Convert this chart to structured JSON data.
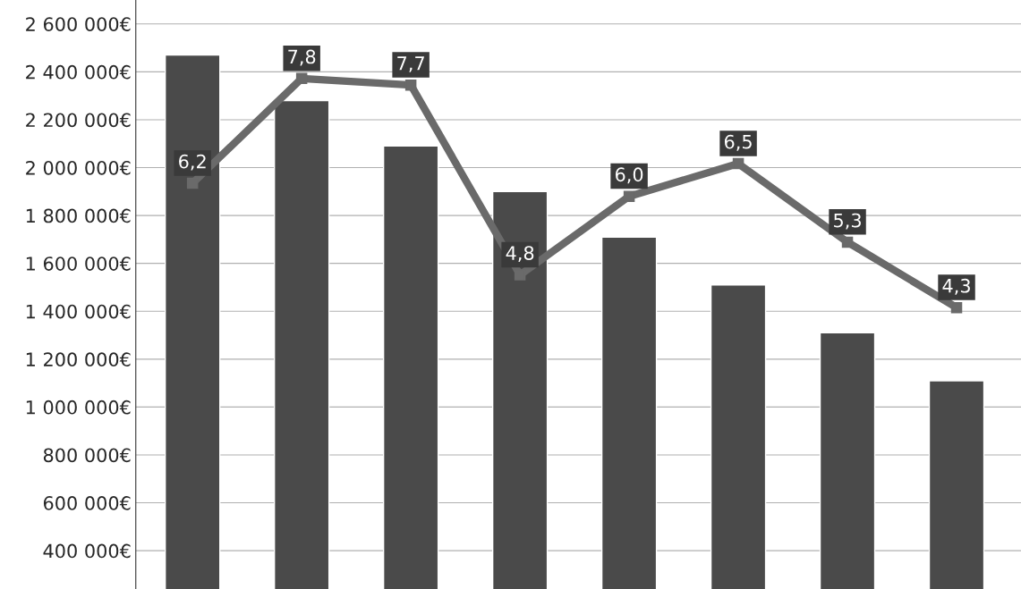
{
  "chart_data": {
    "type": "bar",
    "categories": [
      null,
      null,
      null,
      null,
      null,
      null,
      null,
      null
    ],
    "series": [
      {
        "color": "#4a4a4a",
        "values": [
          2470000,
          2280000,
          2090000,
          1900000,
          1710000,
          1510000,
          1310000,
          1110000
        ]
      },
      {
        "type": "line",
        "axis": "y2",
        "color": "#6a6a6a",
        "marker": "square",
        "values": [
          6.2,
          7.8,
          7.7,
          4.8,
          6.0,
          6.5,
          5.3,
          4.3
        ],
        "value_labels": [
          "6,2",
          "7,8",
          "7,7",
          "4,8",
          "6,0",
          "6,5",
          "5,3",
          "4,3"
        ]
      }
    ],
    "ylim": [
      240000,
      2700000
    ],
    "yticks": [
      {
        "value": 400000,
        "label": "400 000€"
      },
      {
        "value": 600000,
        "label": "600 000€"
      },
      {
        "value": 800000,
        "label": "800 000€"
      },
      {
        "value": 1000000,
        "label": "1 000 000€"
      },
      {
        "value": 1200000,
        "label": "1 200 000€"
      },
      {
        "value": 1400000,
        "label": "1 400 000€"
      },
      {
        "value": 1600000,
        "label": "1 600 000€"
      },
      {
        "value": 1800000,
        "label": "1 800 000€"
      },
      {
        "value": 2000000,
        "label": "2 000 000€"
      },
      {
        "value": 2200000,
        "label": "2 200 000€"
      },
      {
        "value": 2400000,
        "label": "2 400 000€"
      },
      {
        "value": 2600000,
        "label": "2 600 000€"
      }
    ],
    "y2lim": [
      0,
      9
    ],
    "grid": "y",
    "tick_labels": "y"
  }
}
